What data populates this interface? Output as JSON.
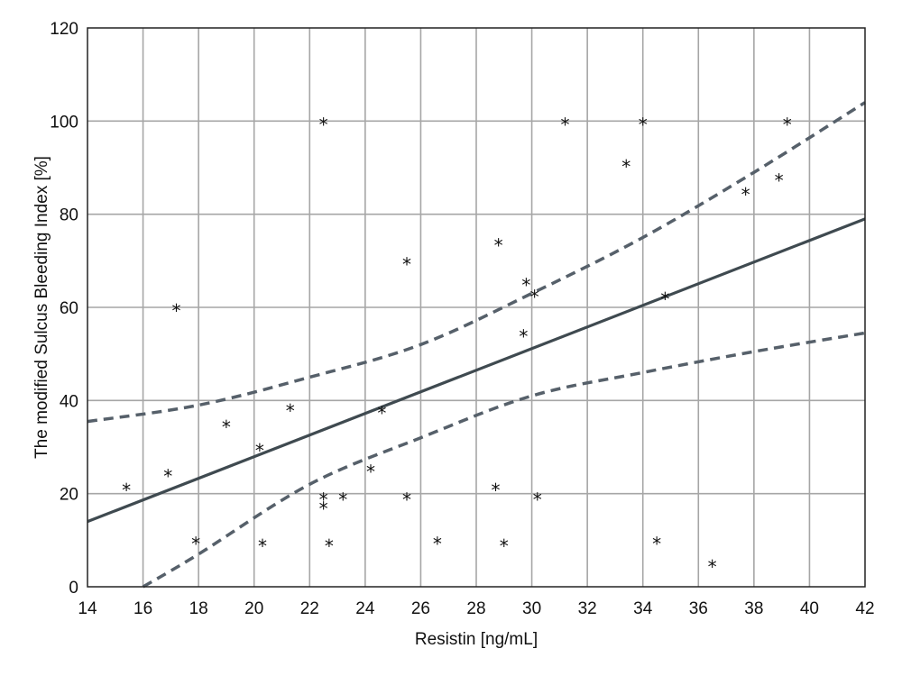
{
  "chart_data": {
    "type": "scatter",
    "title": "",
    "xlabel": "Resistin [ng/mL]",
    "ylabel": "The modified Sulcus Bleeding Index [%]",
    "xlim": [
      14,
      42
    ],
    "ylim": [
      0,
      120
    ],
    "x_ticks": [
      14,
      16,
      18,
      20,
      22,
      24,
      26,
      28,
      30,
      32,
      34,
      36,
      38,
      40,
      42
    ],
    "y_ticks": [
      0,
      20,
      40,
      60,
      80,
      100,
      120
    ],
    "x_tick_labels": [
      "14",
      "16",
      "18",
      "20",
      "22",
      "24",
      "26",
      "28",
      "30",
      "32",
      "34",
      "36",
      "38",
      "40",
      "42"
    ],
    "y_tick_labels": [
      "0",
      "20",
      "40",
      "60",
      "80",
      "100",
      "120"
    ],
    "grid": true,
    "marker": "*",
    "colors": {
      "grid": "#a6a6a6",
      "axis": "#222222",
      "regression": "#3f4a50",
      "confidence": "#56606a",
      "points": "#111111"
    },
    "points": [
      {
        "x": 15.4,
        "y": 21.5
      },
      {
        "x": 16.9,
        "y": 24.5
      },
      {
        "x": 17.2,
        "y": 60
      },
      {
        "x": 17.9,
        "y": 10
      },
      {
        "x": 19.0,
        "y": 35
      },
      {
        "x": 20.2,
        "y": 30
      },
      {
        "x": 20.3,
        "y": 9.5
      },
      {
        "x": 21.3,
        "y": 38.5
      },
      {
        "x": 22.5,
        "y": 100
      },
      {
        "x": 22.5,
        "y": 19.5
      },
      {
        "x": 22.5,
        "y": 17.5
      },
      {
        "x": 22.7,
        "y": 9.5
      },
      {
        "x": 23.2,
        "y": 19.5
      },
      {
        "x": 24.2,
        "y": 25.5
      },
      {
        "x": 24.6,
        "y": 38
      },
      {
        "x": 25.5,
        "y": 70
      },
      {
        "x": 25.5,
        "y": 19.5
      },
      {
        "x": 26.6,
        "y": 10
      },
      {
        "x": 28.7,
        "y": 21.5
      },
      {
        "x": 28.8,
        "y": 74
      },
      {
        "x": 29.0,
        "y": 9.5
      },
      {
        "x": 29.7,
        "y": 54.5
      },
      {
        "x": 29.8,
        "y": 65.5
      },
      {
        "x": 30.1,
        "y": 63
      },
      {
        "x": 30.2,
        "y": 19.5
      },
      {
        "x": 31.2,
        "y": 100
      },
      {
        "x": 33.4,
        "y": 91
      },
      {
        "x": 34.0,
        "y": 100
      },
      {
        "x": 34.5,
        "y": 10
      },
      {
        "x": 34.8,
        "y": 62.5
      },
      {
        "x": 36.5,
        "y": 5
      },
      {
        "x": 37.7,
        "y": 85
      },
      {
        "x": 38.9,
        "y": 88
      },
      {
        "x": 39.2,
        "y": 100
      }
    ],
    "regression_line": {
      "x": [
        14,
        42
      ],
      "y": [
        14,
        79
      ]
    },
    "confidence_upper": {
      "x": [
        14,
        18,
        22,
        26,
        30,
        34,
        38,
        42
      ],
      "y": [
        35.5,
        39,
        45,
        52,
        63,
        75,
        89,
        104
      ]
    },
    "confidence_lower": {
      "x": [
        16,
        18,
        22,
        26,
        30,
        34,
        38,
        42
      ],
      "y": [
        0,
        7,
        22,
        32,
        41,
        46,
        50.5,
        54.5
      ]
    }
  }
}
